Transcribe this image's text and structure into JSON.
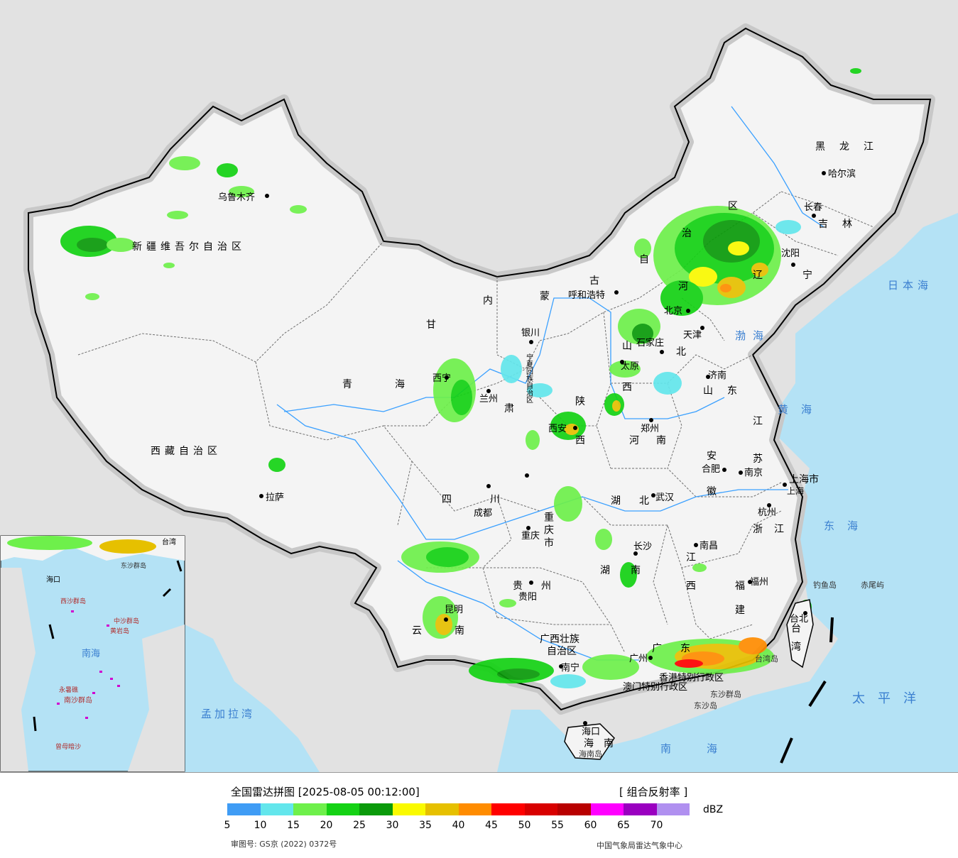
{
  "map": {
    "labels": {
      "xinjiang": "新疆维吾尔自治区",
      "urumqi": "乌鲁木齐",
      "tibet": "西藏自治区",
      "lhasa": "拉萨",
      "qinghai": "青海",
      "xining": "西宁",
      "gansu": "甘",
      "gansu2": "肃",
      "lanzhou": "兰州",
      "neimenggu1": "内",
      "neimenggu2": "蒙",
      "neimenggu3": "古",
      "neimenggu4": "自",
      "neimenggu5": "治",
      "neimenggu6": "区",
      "hohhot": "呼和浩特",
      "yinchuan": "银川",
      "ningxia": "宁夏回族自治区",
      "heilongjiang": "黑龙江",
      "harbin": "哈尔滨",
      "jilin": "吉林",
      "changchun": "长春",
      "liaoning": "辽宁",
      "shenyang": "沈阳",
      "beijing": "北京",
      "tianjin": "天津",
      "hebei1": "河",
      "hebei2": "北",
      "shijiazhuang": "石家庄",
      "shanxi1": "山",
      "shanxi2": "西",
      "taiyuan": "太原",
      "shandong": "山东",
      "jinan": "济南",
      "shaanxi1": "陕",
      "shaanxi2": "西",
      "xian": "西安",
      "henan": "河南",
      "zhengzhou": "郑州",
      "jiangsu1": "江",
      "jiangsu2": "苏",
      "nanjing": "南京",
      "shanghai": "上海市",
      "shanghai_city": "上海",
      "anhui1": "安",
      "anhui2": "徽",
      "hefei": "合肥",
      "zhejiang": "浙江",
      "hangzhou": "杭州",
      "hubei": "湖北",
      "wuhan": "武汉",
      "sichuan": "四川",
      "chengdu": "成都",
      "chongqing_label": "重庆市",
      "chongqing": "重庆",
      "hunan1": "湖",
      "hunan2": "南",
      "changsha": "长沙",
      "jiangxi1": "江",
      "jiangxi2": "西",
      "nanchang": "南昌",
      "fujian1": "福",
      "fujian2": "建",
      "fuzhou": "福州",
      "guizhou": "贵州",
      "guiyang": "贵阳",
      "yunnan1": "云",
      "yunnan2": "南",
      "kunming": "昆明",
      "guangxi1": "广西壮族",
      "guangxi2": "自治区",
      "nanning": "南宁",
      "guangdong1": "广",
      "guangdong2": "东",
      "guangzhou": "广州",
      "hongkong": "香港特别行政区",
      "macau": "澳门特别行政区",
      "hainan1": "海",
      "hainan2": "南",
      "haikou": "海口",
      "hainan_island": "海南岛",
      "taiwan1": "台",
      "taiwan2": "湾",
      "taipei": "台北",
      "taiwan_island": "台湾岛",
      "dongsha_islands": "东沙群岛",
      "dongsha_island": "东沙岛",
      "diaoyu": "钓鱼岛",
      "chiwei": "赤尾屿",
      "bohai": "渤海",
      "huanghai": "黄海",
      "donghai": "东海",
      "nanhai": "南海",
      "taipingyang": "太平洋",
      "ribenhai": "日本海",
      "mengjialawan": "孟加拉湾"
    },
    "inset": {
      "nanhai": "南海",
      "zhongsha": "中沙群岛",
      "huangyan": "黄岩岛",
      "nansha": "南沙群岛",
      "xisha": "西沙群岛",
      "yongshu": "永暑礁",
      "zengmu": "曾母暗沙",
      "haikou": "海口",
      "dongsha": "东沙群岛",
      "taiwan": "台湾"
    }
  },
  "footer": {
    "title": "全国雷达拼图 [2025-08-05 00:12:00]",
    "product": "[ 组合反射率 ]",
    "unit": "dBZ",
    "approval": "审图号: GS京 (2022) 0372号",
    "credit": "中国气象局雷达气象中心",
    "legend_colors": [
      "#3f9cf5",
      "#63e6ec",
      "#6ef04b",
      "#14d214",
      "#0a9a0a",
      "#fafa00",
      "#e6c000",
      "#ff8c00",
      "#ff0000",
      "#d80000",
      "#b80000",
      "#ff00ff",
      "#9a00c0",
      "#b090f0"
    ],
    "legend_ticks": [
      "5",
      "10",
      "15",
      "20",
      "25",
      "30",
      "35",
      "40",
      "45",
      "50",
      "55",
      "60",
      "65",
      "70"
    ]
  }
}
